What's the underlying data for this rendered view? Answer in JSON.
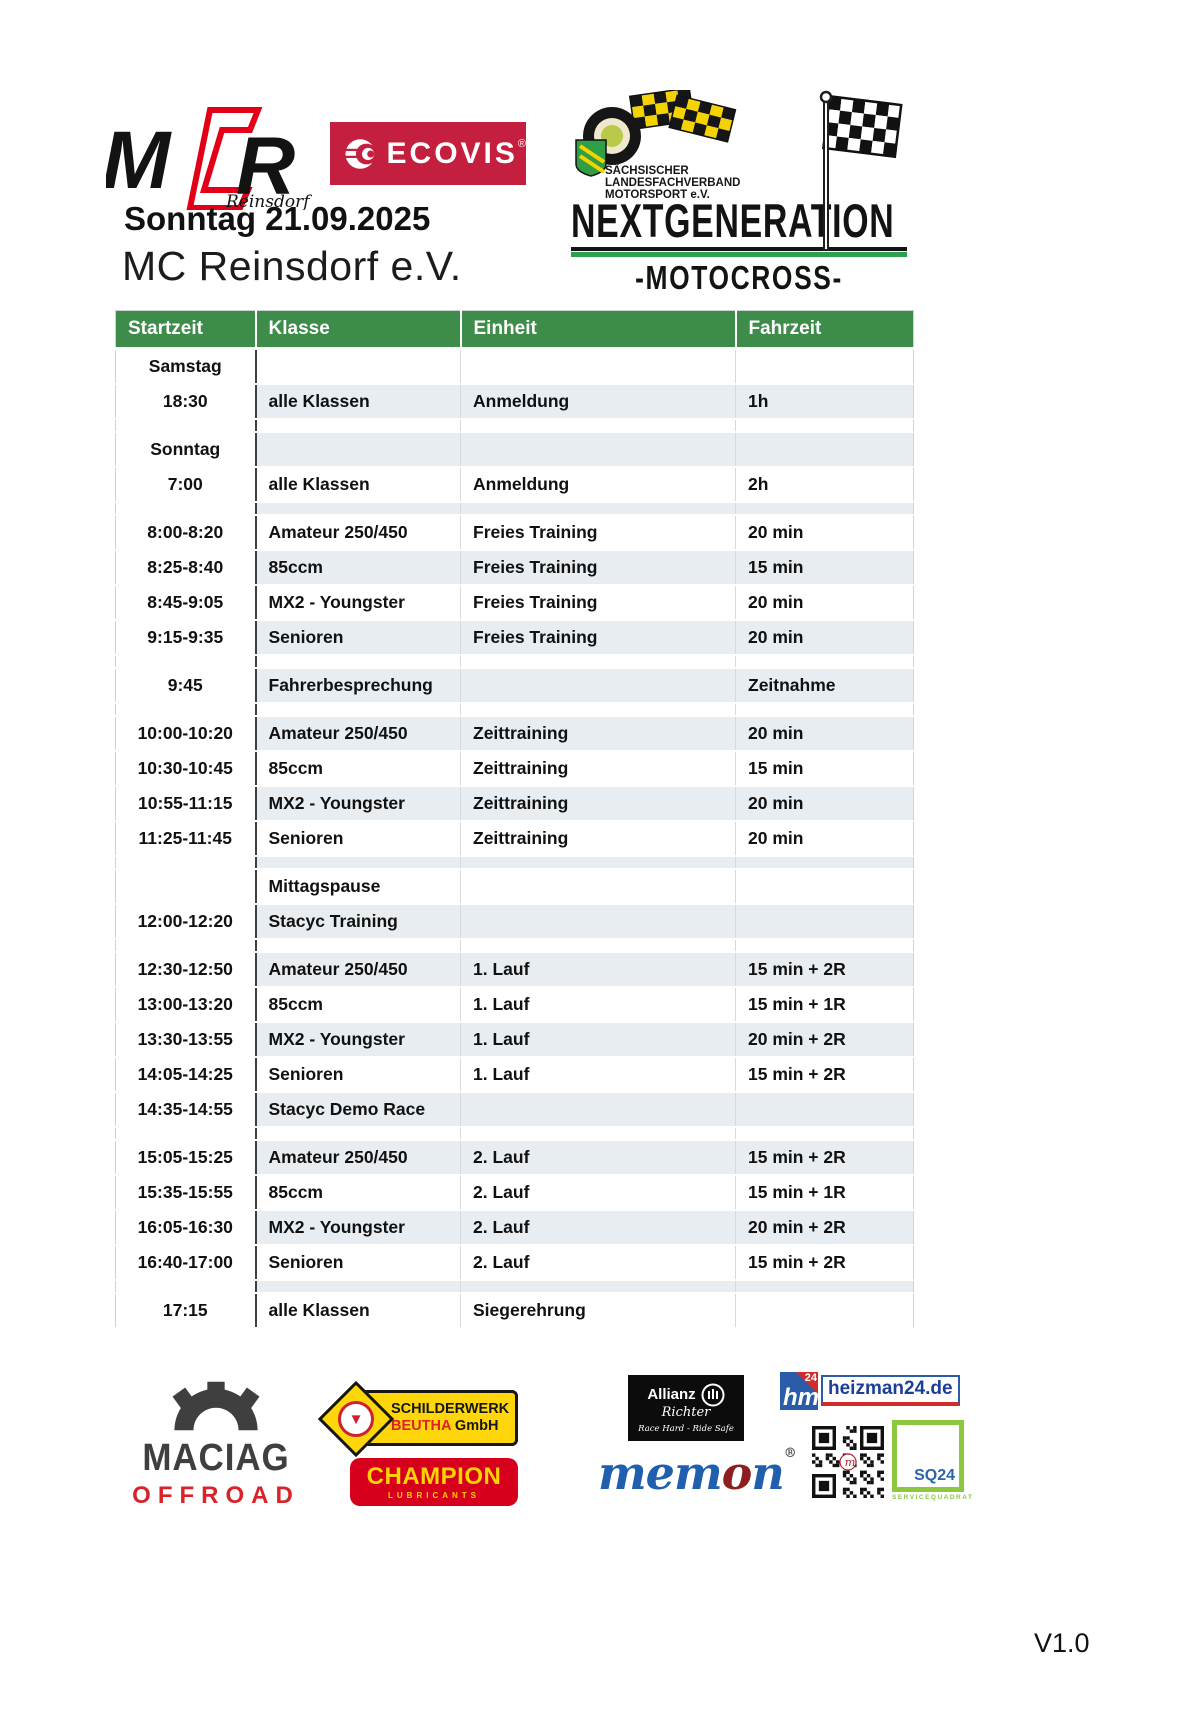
{
  "header": {
    "date_line": "Sonntag 21.09.2025",
    "club_line": "MC Reinsdorf e.V."
  },
  "logos": {
    "mcr": {
      "letter_m": "M",
      "letter_r": "R",
      "sub": "Reinsdorf"
    },
    "ecovis": {
      "name": "ECOVIS",
      "reg": "®"
    },
    "slv": {
      "line1": "SÄCHSISCHER",
      "line2": "LANDESFACHVERBAND",
      "line3": "MOTORSPORT e.V."
    },
    "nextgeneration": {
      "title": "NEXTGENERATION",
      "subtitle": "-MOTOCROSS-"
    }
  },
  "table": {
    "headers": [
      "Startzeit",
      "Klasse",
      "Einheit",
      "Fahrzeit"
    ],
    "rows": [
      {
        "t": "Samstag",
        "k": "",
        "e": "",
        "f": "",
        "day": true
      },
      {
        "t": "18:30",
        "k": "alle Klassen",
        "e": "Anmeldung",
        "f": "1h"
      },
      {
        "spacer": true
      },
      {
        "t": "Sonntag",
        "k": "",
        "e": "",
        "f": "",
        "day": true
      },
      {
        "t": "7:00",
        "k": "alle Klassen",
        "e": "Anmeldung",
        "f": "2h"
      },
      {
        "spacer": true
      },
      {
        "t": "8:00-8:20",
        "k": "Amateur 250/450",
        "e": "Freies Training",
        "f": "20 min"
      },
      {
        "t": "8:25-8:40",
        "k": "85ccm",
        "e": "Freies Training",
        "f": "15 min"
      },
      {
        "t": "8:45-9:05",
        "k": "MX2 - Youngster",
        "e": "Freies Training",
        "f": "20 min"
      },
      {
        "t": "9:15-9:35",
        "k": "Senioren",
        "e": "Freies Training",
        "f": "20 min"
      },
      {
        "spacer": true
      },
      {
        "t": "9:45",
        "k": "Fahrerbesprechung",
        "e": "",
        "f": "Zeitnahme"
      },
      {
        "spacer": true
      },
      {
        "t": "10:00-10:20",
        "k": "Amateur 250/450",
        "e": "Zeittraining",
        "f": "20 min"
      },
      {
        "t": "10:30-10:45",
        "k": "85ccm",
        "e": "Zeittraining",
        "f": "15 min"
      },
      {
        "t": "10:55-11:15",
        "k": "MX2 - Youngster",
        "e": "Zeittraining",
        "f": "20 min"
      },
      {
        "t": "11:25-11:45",
        "k": "Senioren",
        "e": "Zeittraining",
        "f": "20 min"
      },
      {
        "spacer": true
      },
      {
        "t": "",
        "k": "Mittagspause",
        "e": "",
        "f": ""
      },
      {
        "t": "12:00-12:20",
        "k": "Stacyc Training",
        "e": "",
        "f": ""
      },
      {
        "spacer": true
      },
      {
        "t": "12:30-12:50",
        "k": "Amateur 250/450",
        "e": "1. Lauf",
        "f": "15 min + 2R"
      },
      {
        "t": "13:00-13:20",
        "k": "85ccm",
        "e": "1. Lauf",
        "f": "15 min + 1R"
      },
      {
        "t": "13:30-13:55",
        "k": "MX2 - Youngster",
        "e": "1. Lauf",
        "f": "20 min + 2R"
      },
      {
        "t": "14:05-14:25",
        "k": "Senioren",
        "e": "1. Lauf",
        "f": "15 min + 2R"
      },
      {
        "t": "14:35-14:55",
        "k": "Stacyc Demo Race",
        "e": "",
        "f": ""
      },
      {
        "spacer": true
      },
      {
        "t": "15:05-15:25",
        "k": "Amateur 250/450",
        "e": "2. Lauf",
        "f": "15 min + 2R"
      },
      {
        "t": "15:35-15:55",
        "k": "85ccm",
        "e": "2. Lauf",
        "f": "15 min + 1R"
      },
      {
        "t": "16:05-16:30",
        "k": "MX2 - Youngster",
        "e": "2. Lauf",
        "f": "20 min + 2R"
      },
      {
        "t": "16:40-17:00",
        "k": "Senioren",
        "e": "2. Lauf",
        "f": "15 min + 2R"
      },
      {
        "spacer": true
      },
      {
        "t": "17:15",
        "k": "alle Klassen",
        "e": "Siegerehrung",
        "f": ""
      }
    ]
  },
  "sponsors": {
    "maciag": {
      "name": "MACIAG",
      "sub": "OFFROAD"
    },
    "beutha": {
      "line1": "SCHILDERWERK",
      "brand": "BEUTHA",
      "suffix": " GmbH",
      "triangle": "▼"
    },
    "champion": {
      "name": "CHAMPION",
      "sub": "LUBRICANTS"
    },
    "allianz": {
      "brand": "Allianz",
      "name": "Richter",
      "tagline": "Race Hard - Ride Safe"
    },
    "heizman": {
      "mono": "hm",
      "badge": "24",
      "domain": "heizman24.de"
    },
    "memon": {
      "part1": "mem",
      "o": "o",
      "part2": "n",
      "reg": "®"
    },
    "sq24": {
      "label": "SQ24",
      "caption": "SERVICEQUADRAT",
      "qr_center": "m"
    }
  },
  "footer": {
    "version": "V1.0"
  },
  "colors": {
    "table_header_green": "#3E8C4A",
    "row_shade": "#E8EDF1",
    "ecovis_red": "#C41F3E",
    "mcr_red": "#E30016",
    "nextgen_green": "#2E9E4F",
    "maciag_gray": "#3F3F3F",
    "maciag_red": "#D8232A",
    "beutha_yellow": "#FFD60A",
    "beutha_red": "#E02127",
    "champion_red": "#D6001C",
    "champion_yellow": "#FFD400",
    "heizman_blue": "#2B5CA8",
    "heizman_red": "#D22B2B",
    "memon_blue": "#1F5FAE",
    "memon_maroon": "#8C1F1F",
    "sq24_green": "#8DC63F",
    "sq24_blue": "#2A63AD"
  }
}
